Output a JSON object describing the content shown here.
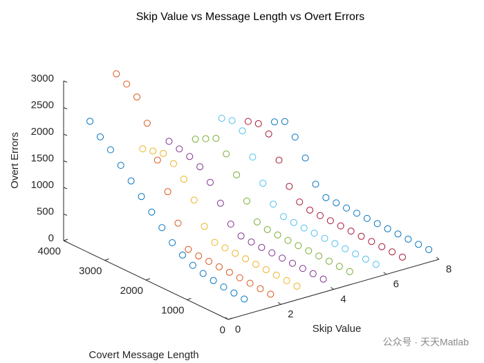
{
  "chart_data": {
    "type": "scatter3d",
    "title": "Skip Value vs Message Length vs Overt Errors",
    "xlabel": "Skip Value",
    "ylabel": "Covert Message Length",
    "zlabel": "Overt Errors",
    "xlim": [
      0,
      8
    ],
    "xticks": [
      0,
      2,
      4,
      6,
      8
    ],
    "ylim": [
      0,
      4000
    ],
    "yticks": [
      0,
      1000,
      2000,
      3000,
      4000
    ],
    "zlim": [
      0,
      3000
    ],
    "zticks": [
      0,
      500,
      1000,
      1500,
      2000,
      2500,
      3000
    ],
    "y": [
      250,
      500,
      750,
      1000,
      1250,
      1500,
      1750,
      2000,
      2250,
      2500,
      2750,
      3000,
      3250,
      3500,
      3750,
      4000
    ],
    "series": [
      {
        "color": "#0072BD",
        "x": 1,
        "z": [
          150,
          170,
          190,
          220,
          260,
          320,
          420,
          560,
          750,
          950,
          1150,
          1350,
          1550,
          1750,
          1900,
          2100
        ]
      },
      {
        "color": "#D95319",
        "x": 2,
        "z": [
          100,
          110,
          120,
          130,
          140,
          150,
          160,
          170,
          200,
          600,
          1100,
          1600,
          2200,
          2600,
          2750,
          2850
        ]
      },
      {
        "color": "#EDB120",
        "x": 3,
        "z": [
          110,
          120,
          130,
          140,
          150,
          160,
          170,
          180,
          190,
          400,
          800,
          1100,
          1300,
          1400,
          1350,
          1300
        ]
      },
      {
        "color": "#7E2F8E",
        "x": 4,
        "z": [
          100,
          110,
          115,
          120,
          125,
          130,
          140,
          150,
          170,
          300,
          600,
          900,
          1100,
          1200,
          1250,
          1300
        ]
      },
      {
        "color": "#77AC30",
        "x": 5,
        "z": [
          100,
          105,
          110,
          115,
          120,
          125,
          130,
          140,
          150,
          200,
          500,
          900,
          1200,
          1400,
          1300,
          1200
        ]
      },
      {
        "color": "#4DBEEE",
        "x": 6,
        "z": [
          95,
          100,
          105,
          110,
          115,
          120,
          125,
          130,
          140,
          160,
          300,
          600,
          1000,
          1400,
          1500,
          1450
        ]
      },
      {
        "color": "#A2142F",
        "x": 7,
        "z": [
          90,
          95,
          100,
          105,
          110,
          115,
          120,
          125,
          130,
          140,
          200,
          400,
          800,
          1200,
          1300,
          1250
        ]
      },
      {
        "color": "#0072BD",
        "x": 8,
        "z": [
          90,
          95,
          100,
          105,
          110,
          115,
          120,
          125,
          130,
          135,
          140,
          300,
          700,
          1000,
          1200,
          1100
        ]
      }
    ],
    "watermark": "公众号 · 天天Matlab"
  }
}
